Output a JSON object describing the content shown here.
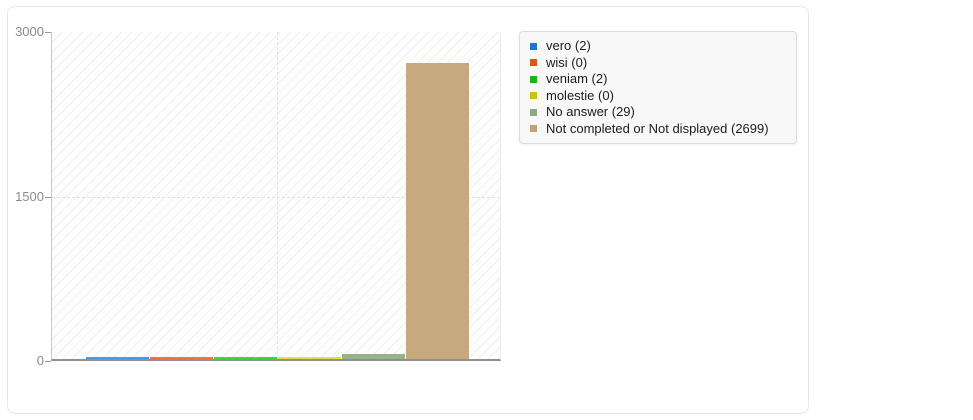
{
  "chart_data": {
    "type": "bar",
    "categories": [
      ""
    ],
    "series": [
      {
        "name": "vero",
        "values": [
          2
        ],
        "bar_color": "#4b97e8"
      },
      {
        "name": "wisi",
        "values": [
          0
        ],
        "bar_color": "#f4714a"
      },
      {
        "name": "veniam",
        "values": [
          2
        ],
        "bar_color": "#37da37"
      },
      {
        "name": "molestie",
        "values": [
          0
        ],
        "bar_color": "#e2e13e"
      },
      {
        "name": "No answer",
        "values": [
          29
        ],
        "bar_color": "#97b488"
      },
      {
        "name": "Not completed or Not displayed",
        "values": [
          2699
        ],
        "bar_color": "#c7a97e"
      }
    ],
    "title": "",
    "xlabel": "",
    "ylabel": "",
    "ylim": [
      0,
      3000
    ],
    "yticks": [
      0,
      1500,
      3000
    ],
    "grid": "dashed",
    "legend_position": "outside-right",
    "plot_background": "diagonal-hatch"
  },
  "yaxis": {
    "ticks": [
      {
        "label": "0",
        "value": 0
      },
      {
        "label": "1500",
        "value": 1500
      },
      {
        "label": "3000",
        "value": 3000
      }
    ],
    "max": 3000
  },
  "legend": {
    "items": [
      {
        "label": "vero (2)",
        "swatch": "#1d76d2"
      },
      {
        "label": "wisi (0)",
        "swatch": "#e0521c"
      },
      {
        "label": "veniam (2)",
        "swatch": "#13b813"
      },
      {
        "label": "molestie (0)",
        "swatch": "#c6c513"
      },
      {
        "label": "No answer (29)",
        "swatch": "#8fa87e"
      },
      {
        "label": "Not completed or Not displayed (2699)",
        "swatch": "#c3a178"
      }
    ]
  }
}
